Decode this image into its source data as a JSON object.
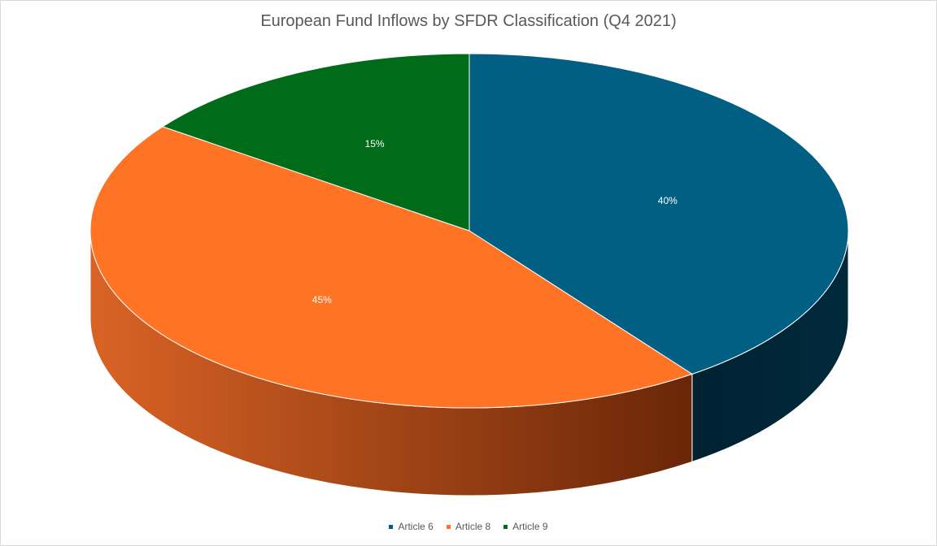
{
  "chart_data": {
    "type": "pie",
    "title": "European Fund Inflows by SFDR Classification (Q4 2021)",
    "categories": [
      "Article 6",
      "Article 8",
      "Article 9"
    ],
    "values": [
      40,
      45,
      15
    ],
    "data_labels": [
      "40%",
      "45%",
      "15%"
    ],
    "colors": [
      "#005f82",
      "#ff7325",
      "#006b18"
    ],
    "side_colors": {
      "Article 6": [
        "#002232",
        "#002a3c"
      ],
      "Article 8": [
        "#d96325",
        "#6a2608"
      ]
    },
    "legend_position": "bottom",
    "style": "3d"
  }
}
